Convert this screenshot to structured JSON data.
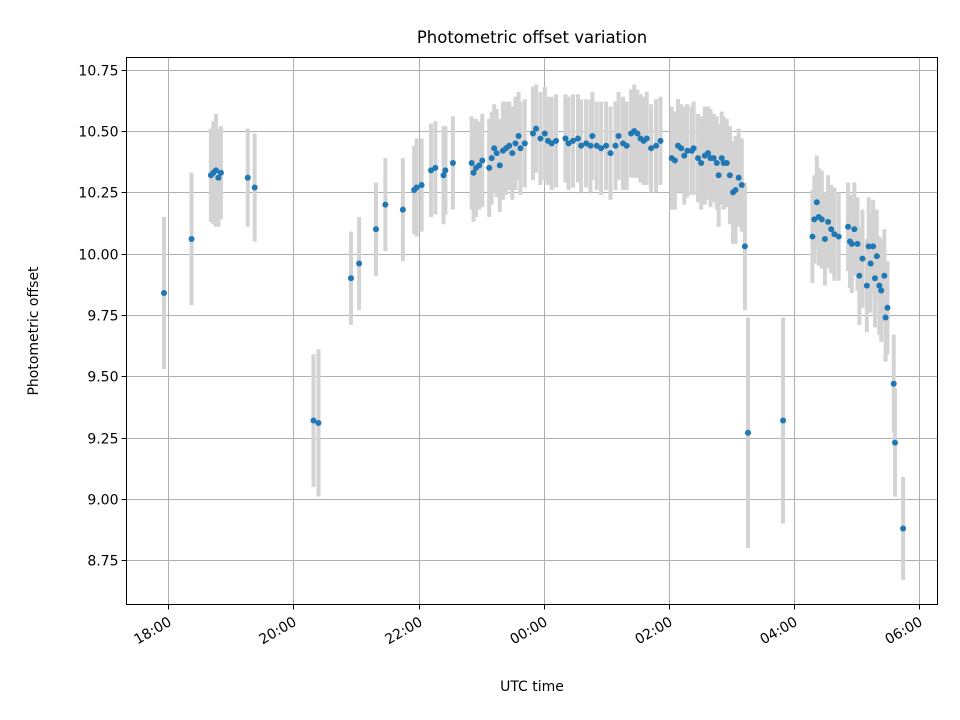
{
  "chart_data": {
    "type": "scatter",
    "title": "Photometric offset variation",
    "xlabel": "UTC time",
    "ylabel": "Photometric offset",
    "grid": true,
    "x_unit": "hours since 18:00 UTC",
    "xlim": [
      -0.67,
      12.3
    ],
    "ylim": [
      8.57,
      10.8
    ],
    "x_ticks": [
      {
        "value": 0,
        "label": "18:00"
      },
      {
        "value": 2,
        "label": "20:00"
      },
      {
        "value": 4,
        "label": "22:00"
      },
      {
        "value": 6,
        "label": "00:00"
      },
      {
        "value": 8,
        "label": "02:00"
      },
      {
        "value": 10,
        "label": "04:00"
      },
      {
        "value": 12,
        "label": "06:00"
      }
    ],
    "y_ticks": [
      {
        "value": 8.75,
        "label": "8.75"
      },
      {
        "value": 9.0,
        "label": "9.00"
      },
      {
        "value": 9.25,
        "label": "9.25"
      },
      {
        "value": 9.5,
        "label": "9.50"
      },
      {
        "value": 9.75,
        "label": "9.75"
      },
      {
        "value": 10.0,
        "label": "10.00"
      },
      {
        "value": 10.25,
        "label": "10.25"
      },
      {
        "value": 10.5,
        "label": "10.50"
      },
      {
        "value": 10.75,
        "label": "10.75"
      }
    ],
    "colors": {
      "marker": "#1f77b4",
      "errorbar": "#d3d3d3",
      "grid": "#b0b0b0",
      "axes": "#000000"
    },
    "series": [
      {
        "name": "offset",
        "points": [
          [
            -0.07,
            9.84,
            0.31
          ],
          [
            0.37,
            10.06,
            0.27
          ],
          [
            0.68,
            10.32,
            0.19
          ],
          [
            0.72,
            10.33,
            0.21
          ],
          [
            0.76,
            10.34,
            0.23
          ],
          [
            0.8,
            10.31,
            0.2
          ],
          [
            0.84,
            10.33,
            0.19
          ],
          [
            1.27,
            10.31,
            0.2
          ],
          [
            1.38,
            10.27,
            0.22
          ],
          [
            2.32,
            9.32,
            0.27
          ],
          [
            2.4,
            9.31,
            0.3
          ],
          [
            2.92,
            9.9,
            0.19
          ],
          [
            3.05,
            9.96,
            0.19
          ],
          [
            3.32,
            10.1,
            0.19
          ],
          [
            3.47,
            10.2,
            0.19
          ],
          [
            3.75,
            10.18,
            0.21
          ],
          [
            3.93,
            10.26,
            0.18
          ],
          [
            3.97,
            10.27,
            0.2
          ],
          [
            4.05,
            10.28,
            0.19
          ],
          [
            4.2,
            10.34,
            0.19
          ],
          [
            4.27,
            10.35,
            0.19
          ],
          [
            4.4,
            10.32,
            0.2
          ],
          [
            4.43,
            10.34,
            0.18
          ],
          [
            4.55,
            10.37,
            0.19
          ],
          [
            4.85,
            10.37,
            0.19
          ],
          [
            4.88,
            10.33,
            0.2
          ],
          [
            4.92,
            10.35,
            0.2
          ],
          [
            4.97,
            10.36,
            0.18
          ],
          [
            5.02,
            10.38,
            0.19
          ],
          [
            5.13,
            10.35,
            0.2
          ],
          [
            5.17,
            10.39,
            0.19
          ],
          [
            5.21,
            10.43,
            0.18
          ],
          [
            5.25,
            10.41,
            0.18
          ],
          [
            5.3,
            10.36,
            0.19
          ],
          [
            5.35,
            10.42,
            0.2
          ],
          [
            5.4,
            10.43,
            0.19
          ],
          [
            5.45,
            10.44,
            0.18
          ],
          [
            5.5,
            10.41,
            0.19
          ],
          [
            5.55,
            10.45,
            0.19
          ],
          [
            5.6,
            10.48,
            0.18
          ],
          [
            5.63,
            10.43,
            0.19
          ],
          [
            5.7,
            10.45,
            0.18
          ],
          [
            5.83,
            10.49,
            0.19
          ],
          [
            5.88,
            10.51,
            0.18
          ],
          [
            5.95,
            10.47,
            0.19
          ],
          [
            6.02,
            10.49,
            0.19
          ],
          [
            6.07,
            10.46,
            0.18
          ],
          [
            6.13,
            10.45,
            0.19
          ],
          [
            6.2,
            10.46,
            0.19
          ],
          [
            6.35,
            10.47,
            0.18
          ],
          [
            6.4,
            10.45,
            0.19
          ],
          [
            6.47,
            10.46,
            0.19
          ],
          [
            6.55,
            10.47,
            0.18
          ],
          [
            6.6,
            10.44,
            0.19
          ],
          [
            6.68,
            10.45,
            0.18
          ],
          [
            6.75,
            10.44,
            0.19
          ],
          [
            6.78,
            10.48,
            0.18
          ],
          [
            6.85,
            10.44,
            0.18
          ],
          [
            6.92,
            10.43,
            0.19
          ],
          [
            7.0,
            10.44,
            0.18
          ],
          [
            7.07,
            10.41,
            0.19
          ],
          [
            7.15,
            10.44,
            0.18
          ],
          [
            7.2,
            10.48,
            0.18
          ],
          [
            7.27,
            10.45,
            0.19
          ],
          [
            7.33,
            10.44,
            0.18
          ],
          [
            7.4,
            10.49,
            0.18
          ],
          [
            7.45,
            10.5,
            0.19
          ],
          [
            7.5,
            10.49,
            0.18
          ],
          [
            7.55,
            10.47,
            0.18
          ],
          [
            7.6,
            10.46,
            0.18
          ],
          [
            7.65,
            10.47,
            0.19
          ],
          [
            7.72,
            10.43,
            0.18
          ],
          [
            7.8,
            10.44,
            0.19
          ],
          [
            7.87,
            10.46,
            0.18
          ],
          [
            8.05,
            10.39,
            0.21
          ],
          [
            8.1,
            10.38,
            0.2
          ],
          [
            8.15,
            10.44,
            0.19
          ],
          [
            8.2,
            10.43,
            0.18
          ],
          [
            8.25,
            10.4,
            0.2
          ],
          [
            8.3,
            10.42,
            0.19
          ],
          [
            8.37,
            10.42,
            0.18
          ],
          [
            8.4,
            10.43,
            0.19
          ],
          [
            8.47,
            10.39,
            0.18
          ],
          [
            8.52,
            10.37,
            0.19
          ],
          [
            8.58,
            10.4,
            0.2
          ],
          [
            8.63,
            10.41,
            0.19
          ],
          [
            8.67,
            10.39,
            0.2
          ],
          [
            8.72,
            10.39,
            0.18
          ],
          [
            8.77,
            10.37,
            0.19
          ],
          [
            8.8,
            10.32,
            0.21
          ],
          [
            8.85,
            10.39,
            0.19
          ],
          [
            8.88,
            10.37,
            0.19
          ],
          [
            8.93,
            10.37,
            0.18
          ],
          [
            8.98,
            10.32,
            0.2
          ],
          [
            9.03,
            10.25,
            0.21
          ],
          [
            9.07,
            10.26,
            0.22
          ],
          [
            9.12,
            10.31,
            0.2
          ],
          [
            9.17,
            10.28,
            0.19
          ],
          [
            9.22,
            10.03,
            0.26
          ],
          [
            9.27,
            9.27,
            0.47
          ],
          [
            9.83,
            9.32,
            0.42
          ],
          [
            10.3,
            10.07,
            0.19
          ],
          [
            10.33,
            10.14,
            0.18
          ],
          [
            10.37,
            10.21,
            0.19
          ],
          [
            10.4,
            10.15,
            0.2
          ],
          [
            10.45,
            10.14,
            0.2
          ],
          [
            10.5,
            10.06,
            0.19
          ],
          [
            10.55,
            10.13,
            0.19
          ],
          [
            10.6,
            10.1,
            0.18
          ],
          [
            10.65,
            10.08,
            0.19
          ],
          [
            10.72,
            10.07,
            0.18
          ],
          [
            10.87,
            10.11,
            0.18
          ],
          [
            10.9,
            10.05,
            0.19
          ],
          [
            10.93,
            10.04,
            0.2
          ],
          [
            10.97,
            10.1,
            0.19
          ],
          [
            11.02,
            10.04,
            0.19
          ],
          [
            11.05,
            9.91,
            0.2
          ],
          [
            11.1,
            9.98,
            0.2
          ],
          [
            11.17,
            9.87,
            0.19
          ],
          [
            11.2,
            10.03,
            0.2
          ],
          [
            11.23,
            9.96,
            0.2
          ],
          [
            11.27,
            10.03,
            0.19
          ],
          [
            11.3,
            9.9,
            0.2
          ],
          [
            11.33,
            9.99,
            0.19
          ],
          [
            11.37,
            9.87,
            0.2
          ],
          [
            11.4,
            9.85,
            0.21
          ],
          [
            11.45,
            9.91,
            0.19
          ],
          [
            11.47,
            9.74,
            0.18
          ],
          [
            11.5,
            9.78,
            0.19
          ],
          [
            11.6,
            9.47,
            0.2
          ],
          [
            11.62,
            9.23,
            0.22
          ],
          [
            11.75,
            8.88,
            0.21
          ]
        ]
      }
    ]
  }
}
